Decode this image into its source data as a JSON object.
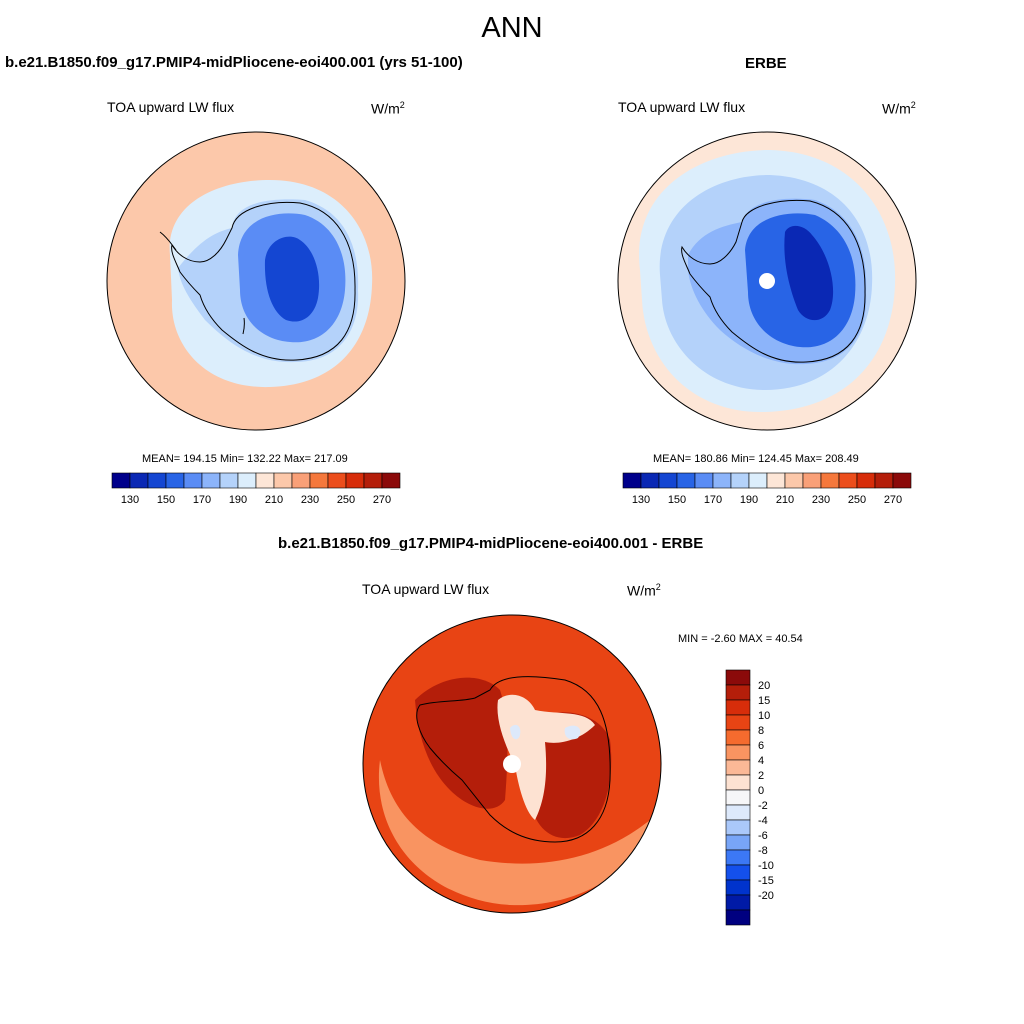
{
  "figure": {
    "season": "ANN",
    "units_base": "W/m",
    "units_exp": "2"
  },
  "palettes": {
    "absolute": [
      "#00008b",
      "#0a28b4",
      "#1446d2",
      "#2864e6",
      "#5a8cf5",
      "#8cb4fa",
      "#b4d2fa",
      "#dceefc",
      "#fde6d7",
      "#fcc8aa",
      "#f9a078",
      "#f5783c",
      "#ec4e1c",
      "#d72d0a",
      "#b41e0a",
      "#8b0a0a"
    ],
    "difference": [
      "#000080",
      "#001aa6",
      "#0033cc",
      "#1450ec",
      "#3c78f5",
      "#78a5f7",
      "#aac8fa",
      "#dde9fb",
      "#f6f6f8",
      "#fde2d2",
      "#fbb896",
      "#f99461",
      "#f56b2e",
      "#e84414",
      "#d72d0a",
      "#b41e0a",
      "#8b0a0a"
    ]
  },
  "chart_data": [
    {
      "type": "heatmap",
      "projection": "south-polar-stereographic",
      "title": "b.e21.B1850.f09_g17.PMIP4-midPliocene-eoi400.001 (yrs 51-100)",
      "field": "TOA upward LW flux",
      "units": "W/m2",
      "stats": {
        "mean": "194.15",
        "min": "132.22",
        "max": "217.09"
      },
      "stats_text": "MEAN= 194.15  Min= 132.22  Max= 217.09",
      "levels": [
        130,
        140,
        150,
        160,
        170,
        180,
        190,
        200,
        210,
        220,
        230,
        240,
        250,
        260,
        270
      ],
      "tick_labels": [
        "130",
        "150",
        "170",
        "190",
        "210",
        "230",
        "250",
        "270"
      ],
      "regions": [
        {
          "name": "ocean",
          "value": 212
        },
        {
          "name": "sea-ice-belt",
          "value": 196
        },
        {
          "name": "antarctic-margin",
          "value": 182
        },
        {
          "name": "plateau",
          "value": 163
        },
        {
          "name": "plateau-core",
          "value": 146
        }
      ]
    },
    {
      "type": "heatmap",
      "projection": "south-polar-stereographic",
      "title": "ERBE",
      "field": "TOA upward LW flux",
      "units": "W/m2",
      "stats": {
        "mean": "180.86",
        "min": "124.45",
        "max": "208.49"
      },
      "stats_text": "MEAN= 180.86  Min= 124.45  Max= 208.49",
      "levels": [
        130,
        140,
        150,
        160,
        170,
        180,
        190,
        200,
        210,
        220,
        230,
        240,
        250,
        260,
        270
      ],
      "tick_labels": [
        "130",
        "150",
        "170",
        "190",
        "210",
        "230",
        "250",
        "270"
      ],
      "regions": [
        {
          "name": "ocean",
          "value": 203
        },
        {
          "name": "sea-ice-belt",
          "value": 193
        },
        {
          "name": "southern-ocean",
          "value": 183
        },
        {
          "name": "antarctic-margin",
          "value": 172
        },
        {
          "name": "plateau",
          "value": 157
        },
        {
          "name": "plateau-core",
          "value": 137
        }
      ],
      "missing_pole": true
    },
    {
      "type": "heatmap",
      "projection": "south-polar-stereographic",
      "title": "b.e21.B1850.f09_g17.PMIP4-midPliocene-eoi400.001 - ERBE",
      "field": "TOA upward LW flux",
      "units": "W/m2",
      "stats": {
        "min": "-2.60",
        "max": "40.54"
      },
      "stats_text": "MIN =  -2.60 MAX =  40.54",
      "levels": [
        -20,
        -15,
        -10,
        -8,
        -6,
        -4,
        -2,
        0,
        2,
        4,
        6,
        8,
        10,
        15,
        20
      ],
      "tick_labels": [
        "20",
        "15",
        "10",
        "8",
        "6",
        "4",
        "2",
        "0",
        "-2",
        "-4",
        "-6",
        "-8",
        "-10",
        "-15",
        "-20"
      ],
      "regions": [
        {
          "name": "ocean",
          "value": 12
        },
        {
          "name": "outer-ring",
          "value": 7
        },
        {
          "name": "west-antarctica",
          "value": 25
        },
        {
          "name": "east-antarctica",
          "value": 25
        },
        {
          "name": "plateau-ridge",
          "value": 3
        },
        {
          "name": "ridge-core",
          "value": -1
        }
      ],
      "missing_pole": true
    }
  ]
}
